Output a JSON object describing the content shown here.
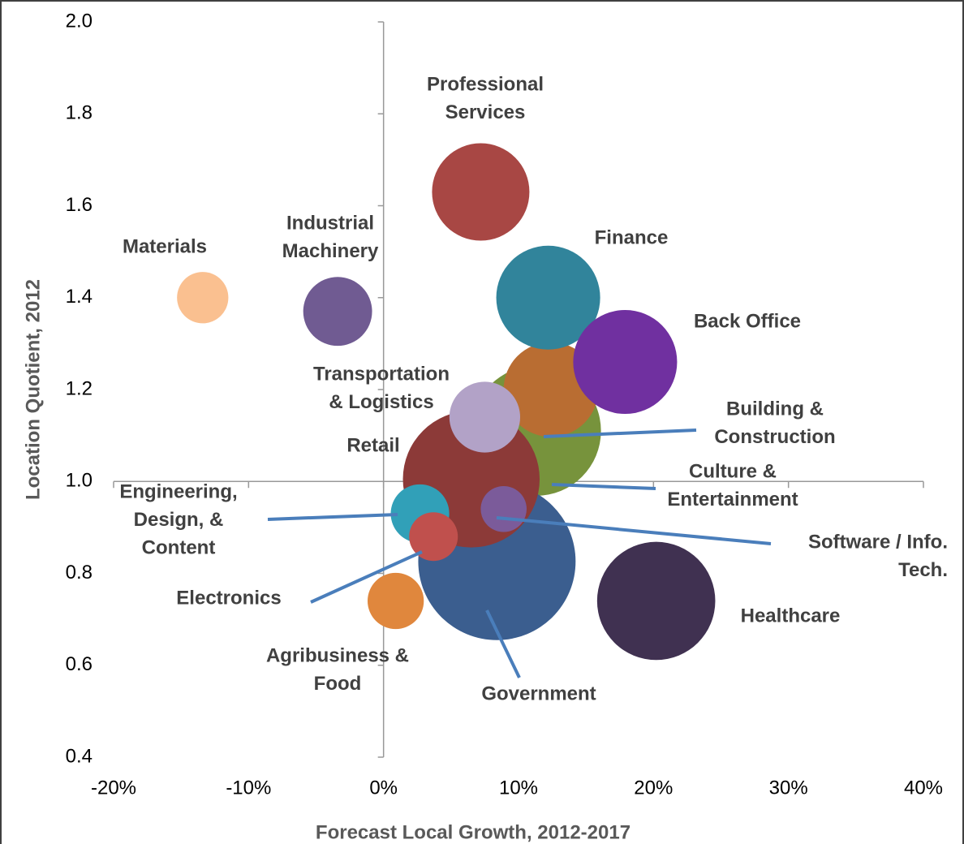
{
  "chart_data": {
    "type": "bubble",
    "x_label": "Forecast Local Growth, 2012-2017",
    "y_label": "Location Quotient, 2012",
    "xlim": [
      -20,
      40
    ],
    "ylim": [
      0.4,
      2.0
    ],
    "xticks": [
      {
        "value": -20,
        "label": "-20%"
      },
      {
        "value": -10,
        "label": "-10%"
      },
      {
        "value": 0,
        "label": "0%"
      },
      {
        "value": 10,
        "label": "10%"
      },
      {
        "value": 20,
        "label": "20%"
      },
      {
        "value": 30,
        "label": "30%"
      },
      {
        "value": 40,
        "label": "40%"
      }
    ],
    "yticks": [
      0.4,
      0.6,
      0.8,
      {
        "value": 1.0,
        "label": "1.0"
      },
      1.2,
      1.4,
      1.6,
      1.8,
      {
        "value": 2.0,
        "label": "2.0"
      }
    ],
    "points": [
      {
        "label": [
          "Culture &",
          "Entertainment"
        ],
        "x": 11.3,
        "y": 1.11,
        "size": 64,
        "color": "#77933c"
      },
      {
        "label": [
          "Building &",
          "Construction"
        ],
        "x": 12.4,
        "y": 1.2,
        "size": 34,
        "color": "#b96d32"
      },
      {
        "label": [
          "Government"
        ],
        "x": 8.4,
        "y": 0.826,
        "size": 94,
        "color": "#3b5e8f"
      },
      {
        "label": [
          "Retail"
        ],
        "x": 6.5,
        "y": 1.005,
        "size": 71,
        "color": "#8c3a38"
      },
      {
        "label": [
          "Materials"
        ],
        "x": -13.4,
        "y": 1.4,
        "size": 10,
        "color": "#fac090"
      },
      {
        "label": [
          "Industrial",
          "Machinery"
        ],
        "x": -3.4,
        "y": 1.37,
        "size": 18,
        "color": "#705b92"
      },
      {
        "label": [
          "Professional",
          "Services"
        ],
        "x": 7.2,
        "y": 1.63,
        "size": 36,
        "color": "#a84744"
      },
      {
        "label": [
          "Finance"
        ],
        "x": 12.2,
        "y": 1.4,
        "size": 41,
        "color": "#31849b"
      },
      {
        "label": [
          "Back Office"
        ],
        "x": 17.9,
        "y": 1.26,
        "size": 41,
        "color": "#7030a0"
      },
      {
        "label": [
          "Transportation",
          "& Logistics"
        ],
        "x": 7.5,
        "y": 1.14,
        "size": 19,
        "color": "#b2a2c7"
      },
      {
        "label": [
          "Healthcare"
        ],
        "x": 20.2,
        "y": 0.74,
        "size": 53,
        "color": "#403151"
      },
      {
        "label": [
          "Engineering,",
          "Design, &",
          "Content"
        ],
        "x": 2.7,
        "y": 0.93,
        "size": 13,
        "color": "#31a0b8"
      },
      {
        "label": [
          "Software / Info.",
          "Tech."
        ],
        "x": 8.9,
        "y": 0.94,
        "size": 8,
        "color": "#7b5b9a"
      },
      {
        "label": [
          "Electronics"
        ],
        "x": 3.7,
        "y": 0.88,
        "size": 9,
        "color": "#c0504d"
      },
      {
        "label": [
          "Agribusiness &",
          "Food"
        ],
        "x": 0.9,
        "y": 0.74,
        "size": 12,
        "color": "#e0873d"
      }
    ]
  }
}
